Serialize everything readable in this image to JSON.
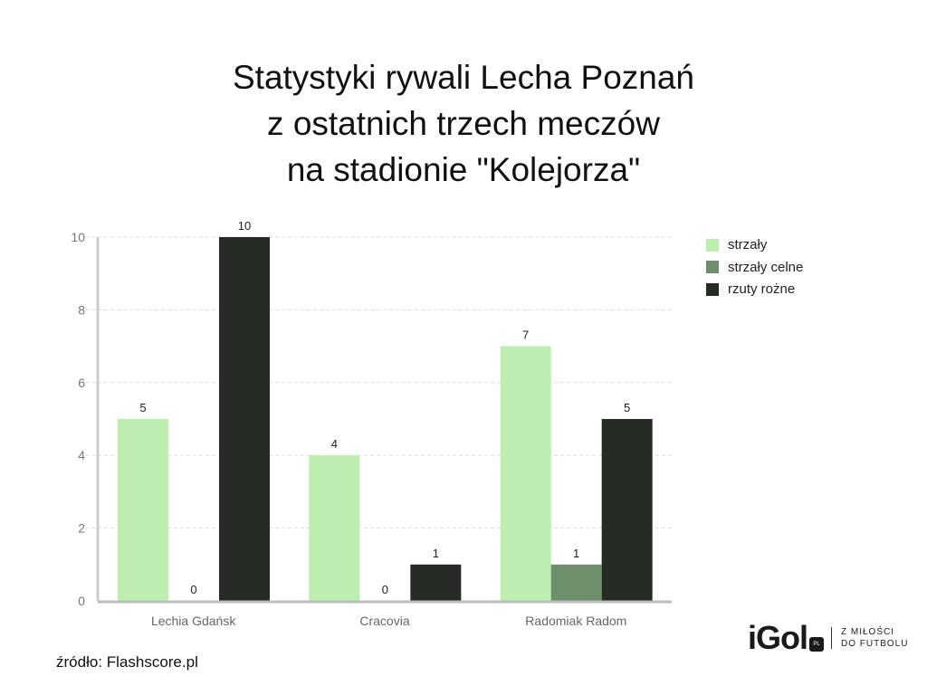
{
  "title": [
    "Statystyki rywali Lecha Poznań",
    "z ostatnich trzech meczów",
    "na stadionie \"Kolejorza\""
  ],
  "source": "źródło: Flashscore.pl",
  "logo": {
    "brand": "iGol",
    "badge": "PL",
    "tagline1": "Z MIŁOŚCI",
    "tagline2": "DO FUTBOLU"
  },
  "chart_data": {
    "type": "bar",
    "categories": [
      "Lechia Gdańsk",
      "Cracovia",
      "Radomiak Radom"
    ],
    "series": [
      {
        "name": "strzały",
        "color": "#bdeeb0",
        "values": [
          5,
          4,
          7
        ]
      },
      {
        "name": "strzały celne",
        "color": "#6f8f6c",
        "values": [
          0,
          0,
          1
        ]
      },
      {
        "name": "rzuty rożne",
        "color": "#272b26",
        "values": [
          10,
          1,
          5
        ]
      }
    ],
    "ylim": [
      0,
      10
    ],
    "yticks": [
      0,
      2,
      4,
      6,
      8,
      10
    ],
    "grid": true,
    "legend": "top-right"
  }
}
